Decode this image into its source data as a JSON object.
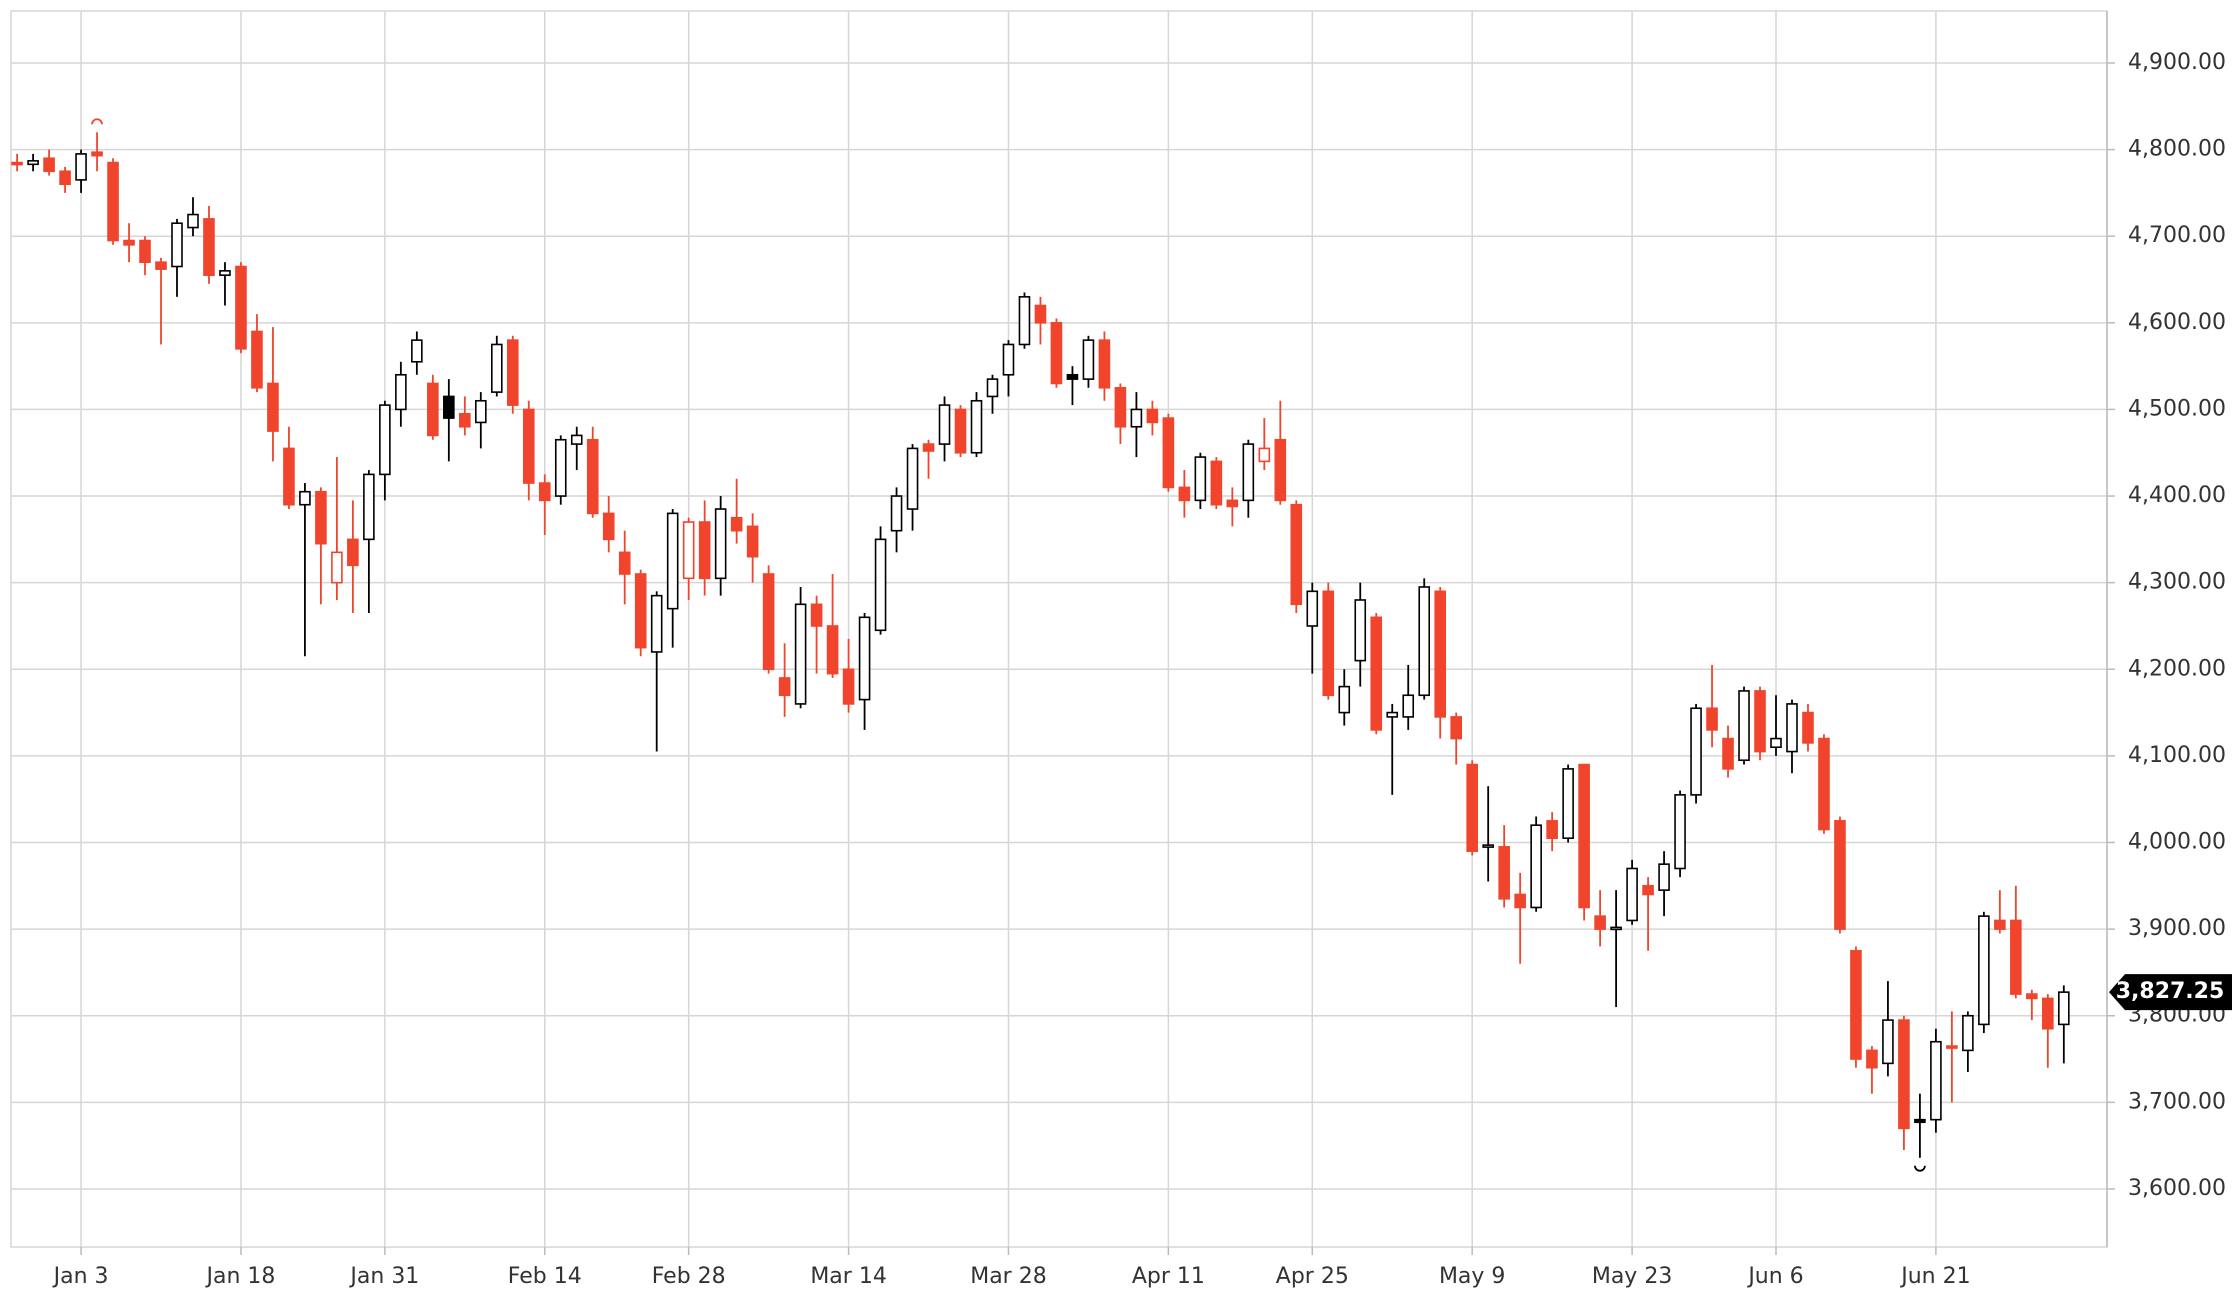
{
  "chart_data": {
    "type": "candlestick",
    "style": "hollow",
    "up_color": "#000000",
    "down_color": "#f0442c",
    "grid": true,
    "categories": [
      null,
      null,
      null,
      null,
      "Jan 3",
      null,
      null,
      null,
      null,
      null,
      null,
      null,
      null,
      null,
      "Jan 18",
      null,
      null,
      null,
      null,
      null,
      null,
      null,
      null,
      "Jan 31",
      null,
      null,
      null,
      null,
      null,
      null,
      null,
      null,
      null,
      "Feb 14",
      null,
      null,
      null,
      null,
      null,
      null,
      null,
      null,
      "Feb 28",
      null,
      null,
      null,
      null,
      null,
      null,
      null,
      null,
      null,
      "Mar 14",
      null,
      null,
      null,
      null,
      null,
      null,
      null,
      null,
      null,
      "Mar 28",
      null,
      null,
      null,
      null,
      null,
      null,
      null,
      null,
      null,
      "Apr 11",
      null,
      null,
      null,
      null,
      null,
      null,
      null,
      null,
      "Apr 25",
      null,
      null,
      null,
      null,
      null,
      null,
      null,
      null,
      null,
      "May 9",
      null,
      null,
      null,
      null,
      null,
      null,
      null,
      null,
      null,
      "May 23",
      null,
      null,
      null,
      null,
      null,
      null,
      null,
      null,
      "Jun 6",
      null,
      null,
      null,
      null,
      null,
      null,
      null,
      null,
      null,
      "Jun 21",
      null,
      null,
      null,
      null,
      null,
      null,
      null,
      null
    ],
    "open": [
      4785,
      4783,
      4790,
      4775,
      4765,
      4797,
      4785,
      4695,
      4695,
      4670,
      4665,
      4710,
      4720,
      4655,
      4665,
      4590,
      4530,
      4455,
      4390,
      4405,
      4300,
      4350,
      4350,
      4425,
      4500,
      4555,
      4530,
      4515,
      4495,
      4485,
      4520,
      4580,
      4500,
      4415,
      4400,
      4460,
      4465,
      4380,
      4335,
      4310,
      4220,
      4270,
      4305,
      4370,
      4305,
      4375,
      4365,
      4310,
      4190,
      4160,
      4275,
      4250,
      4200,
      4165,
      4245,
      4360,
      4385,
      4460,
      4460,
      4500,
      4450,
      4515,
      4540,
      4575,
      4620,
      4600,
      4540,
      4535,
      4580,
      4525,
      4480,
      4500,
      4490,
      4410,
      4395,
      4440,
      4395,
      4395,
      4440,
      4465,
      4390,
      4250,
      4290,
      4150,
      4210,
      4260,
      4145,
      4145,
      4170,
      4290,
      4145,
      4090,
      3995,
      3995,
      3940,
      3925,
      4025,
      4005,
      4090,
      3915,
      3900,
      3910,
      3950,
      3945,
      3970,
      4055,
      4155,
      4120,
      4095,
      4175,
      4110,
      4105,
      4150,
      4120,
      4025,
      3875,
      3760,
      3745,
      3795,
      3680,
      3680,
      3765,
      3760,
      3790,
      3910,
      3910,
      3825,
      3820,
      3790
    ],
    "high": [
      4795,
      4795,
      4800,
      4780,
      4800,
      4820,
      4790,
      4715,
      4700,
      4675,
      4720,
      4745,
      4735,
      4670,
      4670,
      4610,
      4595,
      4480,
      4415,
      4410,
      4445,
      4395,
      4430,
      4510,
      4555,
      4590,
      4540,
      4535,
      4515,
      4520,
      4585,
      4585,
      4510,
      4425,
      4470,
      4480,
      4480,
      4400,
      4360,
      4315,
      4290,
      4385,
      4375,
      4395,
      4400,
      4420,
      4380,
      4320,
      4230,
      4295,
      4285,
      4310,
      4235,
      4265,
      4365,
      4410,
      4460,
      4465,
      4515,
      4505,
      4520,
      4540,
      4580,
      4635,
      4630,
      4605,
      4550,
      4585,
      4590,
      4530,
      4520,
      4510,
      4495,
      4430,
      4450,
      4445,
      4410,
      4465,
      4490,
      4510,
      4395,
      4300,
      4300,
      4200,
      4300,
      4265,
      4160,
      4205,
      4305,
      4295,
      4150,
      4095,
      4065,
      4020,
      3965,
      4030,
      4035,
      4090,
      4090,
      3945,
      3945,
      3980,
      3960,
      3990,
      4060,
      4160,
      4205,
      4135,
      4180,
      4180,
      4170,
      4165,
      4160,
      4125,
      4030,
      3880,
      3765,
      3840,
      3800,
      3710,
      3785,
      3805,
      3805,
      3920,
      3945,
      3950,
      3830,
      3825,
      3835
    ],
    "low": [
      4775,
      4775,
      4770,
      4750,
      4750,
      4775,
      4690,
      4670,
      4655,
      4575,
      4630,
      4700,
      4645,
      4620,
      4565,
      4520,
      4440,
      4385,
      4215,
      4275,
      4280,
      4265,
      4265,
      4395,
      4480,
      4540,
      4465,
      4440,
      4470,
      4455,
      4515,
      4495,
      4395,
      4355,
      4390,
      4430,
      4375,
      4335,
      4275,
      4215,
      4105,
      4225,
      4280,
      4285,
      4285,
      4345,
      4300,
      4195,
      4145,
      4155,
      4195,
      4190,
      4150,
      4130,
      4240,
      4335,
      4360,
      4420,
      4440,
      4445,
      4445,
      4495,
      4515,
      4570,
      4575,
      4525,
      4505,
      4525,
      4510,
      4460,
      4445,
      4470,
      4405,
      4375,
      4385,
      4385,
      4365,
      4375,
      4430,
      4390,
      4265,
      4195,
      4165,
      4135,
      4180,
      4125,
      4055,
      4130,
      4165,
      4120,
      4090,
      3985,
      3955,
      3925,
      3860,
      3920,
      3990,
      4000,
      3910,
      3880,
      3810,
      3905,
      3875,
      3915,
      3960,
      4045,
      4110,
      4075,
      4090,
      4095,
      4100,
      4080,
      4105,
      4010,
      3895,
      3740,
      3710,
      3730,
      3645,
      3636,
      3665,
      3700,
      3735,
      3780,
      3895,
      3820,
      3795,
      3740,
      3745
    ],
    "close": [
      4783,
      4787,
      4775,
      4760,
      4795,
      4793,
      4695,
      4690,
      4670,
      4662,
      4715,
      4725,
      4655,
      4660,
      4570,
      4525,
      4475,
      4390,
      4405,
      4345,
      4335,
      4320,
      4425,
      4505,
      4540,
      4580,
      4470,
      4490,
      4480,
      4510,
      4575,
      4505,
      4415,
      4395,
      4465,
      4470,
      4380,
      4350,
      4310,
      4225,
      4285,
      4380,
      4370,
      4305,
      4385,
      4360,
      4330,
      4200,
      4170,
      4275,
      4250,
      4195,
      4160,
      4260,
      4350,
      4400,
      4455,
      4452,
      4505,
      4450,
      4510,
      4535,
      4575,
      4630,
      4600,
      4530,
      4535,
      4580,
      4525,
      4480,
      4500,
      4485,
      4410,
      4395,
      4445,
      4390,
      4388,
      4460,
      4455,
      4395,
      4275,
      4290,
      4170,
      4180,
      4280,
      4130,
      4150,
      4170,
      4295,
      4145,
      4120,
      3990,
      3997,
      3935,
      3925,
      4020,
      4005,
      4085,
      3925,
      3900,
      3902,
      3970,
      3940,
      3975,
      4055,
      4155,
      4130,
      4085,
      4175,
      4105,
      4120,
      4160,
      4115,
      4015,
      3900,
      3750,
      3740,
      3795,
      3670,
      3677,
      3770,
      3763,
      3800,
      3915,
      3900,
      3825,
      3820,
      3785,
      3827.25
    ],
    "ylim": [
      3533,
      4960
    ],
    "yticks": [
      {
        "value": 3600,
        "label": "3,600.00"
      },
      {
        "value": 3700,
        "label": "3,700.00"
      },
      {
        "value": 3800,
        "label": "3,800.00"
      },
      {
        "value": 3900,
        "label": "3,900.00"
      },
      {
        "value": 4000,
        "label": "4,000.00"
      },
      {
        "value": 4100,
        "label": "4,100.00"
      },
      {
        "value": 4200,
        "label": "4,200.00"
      },
      {
        "value": 4300,
        "label": "4,300.00"
      },
      {
        "value": 4400,
        "label": "4,400.00"
      },
      {
        "value": 4500,
        "label": "4,500.00"
      },
      {
        "value": 4600,
        "label": "4,600.00"
      },
      {
        "value": 4700,
        "label": "4,700.00"
      },
      {
        "value": 4800,
        "label": "4,800.00"
      },
      {
        "value": 4900,
        "label": "4,900.00"
      }
    ],
    "last_price": {
      "value": 3827.25,
      "label": "3,827.25"
    }
  }
}
